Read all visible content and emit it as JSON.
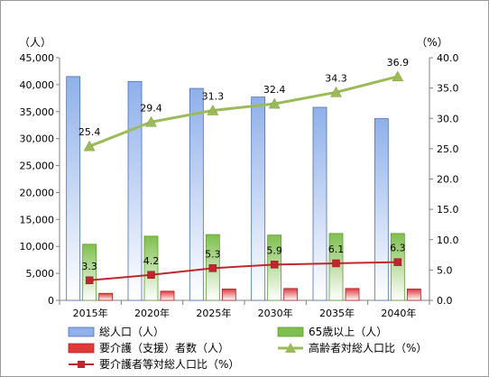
{
  "chart_data": {
    "type": "bar",
    "categories": [
      "2015年",
      "2020年",
      "2025年",
      "2030年",
      "2035年",
      "2040年"
    ],
    "y_left": {
      "unit_label": "（人）",
      "ylim": [
        0,
        45000
      ],
      "ticks": [
        "0",
        "5,000",
        "10,000",
        "15,000",
        "20,000",
        "25,000",
        "30,000",
        "35,000",
        "40,000",
        "45,000"
      ]
    },
    "y_right": {
      "unit_label": "（%）",
      "ylim": [
        0,
        40
      ],
      "ticks": [
        "0.0",
        "5.0",
        "10.0",
        "15.0",
        "20.0",
        "25.0",
        "30.0",
        "35.0",
        "40.0"
      ]
    },
    "grid": false,
    "legend_position": "bottom",
    "series": [
      {
        "name": "総人口（人）",
        "kind": "bar",
        "axis": "left",
        "color": "#5b86d6",
        "values": [
          41500,
          40600,
          39300,
          37700,
          35800,
          33700
        ]
      },
      {
        "name": "65歳以上（人）",
        "kind": "bar",
        "axis": "left",
        "color": "#7fbf4f",
        "values": [
          10400,
          11900,
          12200,
          12100,
          12400,
          12400
        ]
      },
      {
        "name": "要介護（支援）者数（人）",
        "kind": "bar",
        "axis": "left",
        "color": "#e03a3a",
        "values": [
          1300,
          1700,
          2100,
          2200,
          2200,
          2100
        ]
      },
      {
        "name": "高齢者対総人口比（%）",
        "kind": "line",
        "axis": "right",
        "color": "#9bbb59",
        "marker": "triangle",
        "values": [
          25.4,
          29.4,
          31.3,
          32.4,
          34.3,
          36.9
        ],
        "labels": [
          "25.4",
          "29.4",
          "31.3",
          "32.4",
          "34.3",
          "36.9"
        ]
      },
      {
        "name": "要介護者等対総人口比（%）",
        "kind": "line",
        "axis": "right",
        "color": "#c0262d",
        "marker": "square",
        "values": [
          3.3,
          4.2,
          5.3,
          5.9,
          6.1,
          6.3
        ],
        "labels": [
          "3.3",
          "4.2",
          "5.3",
          "5.9",
          "6.1",
          "6.3"
        ]
      }
    ]
  }
}
